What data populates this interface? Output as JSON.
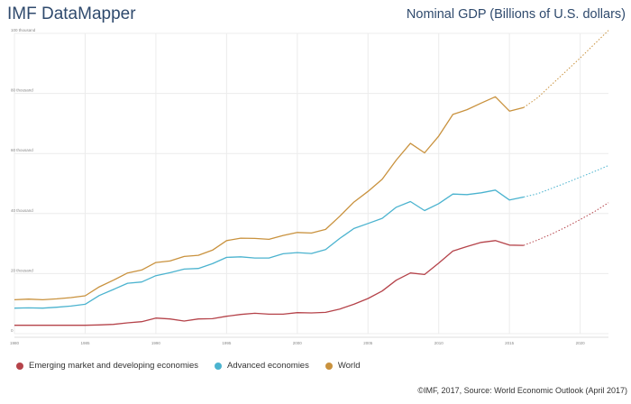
{
  "app_title": "IMF DataMapper",
  "credit": "©IMF, 2017, Source: World Economic Outlook (April 2017)",
  "colors": {
    "emerging": "#b5434a",
    "advanced": "#4bb3cf",
    "world": "#c9923e",
    "grid": "#ececec",
    "axis_text": "#888888"
  },
  "chart_data": {
    "type": "line",
    "title": "Nominal GDP (Billions of U.S. dollars)",
    "xlabel": "",
    "ylabel": "",
    "xlim": [
      1980,
      2022
    ],
    "ylim": [
      0,
      100000
    ],
    "x_ticks": [
      1980,
      1985,
      1990,
      1995,
      2000,
      2005,
      2010,
      2015,
      2020
    ],
    "y_ticks": [
      {
        "value": 0,
        "label": "0"
      },
      {
        "value": 20000,
        "label": "20 thousand"
      },
      {
        "value": 40000,
        "label": "40 thousand"
      },
      {
        "value": 60000,
        "label": "60 thousand"
      },
      {
        "value": 80000,
        "label": "80 thousand"
      },
      {
        "value": 100000,
        "label": "100 thousand"
      }
    ],
    "vertical_grid": true,
    "legend_position": "bottom-left",
    "series": [
      {
        "name": "Emerging market and developing economies",
        "key": "emerging",
        "points": [
          [
            1980,
            2800
          ],
          [
            1981,
            2800
          ],
          [
            1982,
            2800
          ],
          [
            1983,
            2800
          ],
          [
            1984,
            2800
          ],
          [
            1985,
            2800
          ],
          [
            1986,
            2900
          ],
          [
            1987,
            3100
          ],
          [
            1988,
            3600
          ],
          [
            1989,
            4000
          ],
          [
            1990,
            5200
          ],
          [
            1991,
            4900
          ],
          [
            1992,
            4200
          ],
          [
            1993,
            4900
          ],
          [
            1994,
            5000
          ],
          [
            1995,
            5800
          ],
          [
            1996,
            6400
          ],
          [
            1997,
            6800
          ],
          [
            1998,
            6500
          ],
          [
            1999,
            6500
          ],
          [
            2000,
            7000
          ],
          [
            2001,
            6900
          ],
          [
            2002,
            7100
          ],
          [
            2003,
            8200
          ],
          [
            2004,
            9800
          ],
          [
            2005,
            11700
          ],
          [
            2006,
            14200
          ],
          [
            2007,
            17800
          ],
          [
            2008,
            20200
          ],
          [
            2009,
            19700
          ],
          [
            2010,
            23500
          ],
          [
            2011,
            27500
          ],
          [
            2012,
            29000
          ],
          [
            2013,
            30400
          ],
          [
            2014,
            31000
          ],
          [
            2015,
            29500
          ],
          [
            2016,
            29400
          ]
        ],
        "projection": [
          [
            2016,
            29400
          ],
          [
            2017,
            31200
          ],
          [
            2018,
            33200
          ],
          [
            2019,
            35500
          ],
          [
            2020,
            38000
          ],
          [
            2021,
            40600
          ],
          [
            2022,
            43600
          ]
        ]
      },
      {
        "name": "Advanced economies",
        "key": "advanced",
        "points": [
          [
            1980,
            8500
          ],
          [
            1981,
            8600
          ],
          [
            1982,
            8500
          ],
          [
            1983,
            8800
          ],
          [
            1984,
            9200
          ],
          [
            1985,
            9800
          ],
          [
            1986,
            12700
          ],
          [
            1987,
            14700
          ],
          [
            1988,
            16800
          ],
          [
            1989,
            17200
          ],
          [
            1990,
            19300
          ],
          [
            1991,
            20300
          ],
          [
            1992,
            21500
          ],
          [
            1993,
            21700
          ],
          [
            1994,
            23300
          ],
          [
            1995,
            25400
          ],
          [
            1996,
            25600
          ],
          [
            1997,
            25200
          ],
          [
            1998,
            25200
          ],
          [
            1999,
            26600
          ],
          [
            2000,
            27000
          ],
          [
            2001,
            26700
          ],
          [
            2002,
            28000
          ],
          [
            2003,
            31700
          ],
          [
            2004,
            35000
          ],
          [
            2005,
            36700
          ],
          [
            2006,
            38400
          ],
          [
            2007,
            42100
          ],
          [
            2008,
            44000
          ],
          [
            2009,
            41000
          ],
          [
            2010,
            43300
          ],
          [
            2011,
            46500
          ],
          [
            2012,
            46300
          ],
          [
            2013,
            46900
          ],
          [
            2014,
            47800
          ],
          [
            2015,
            44500
          ],
          [
            2016,
            45500
          ]
        ],
        "projection": [
          [
            2016,
            45500
          ],
          [
            2017,
            46600
          ],
          [
            2018,
            48400
          ],
          [
            2019,
            50200
          ],
          [
            2020,
            52100
          ],
          [
            2021,
            54000
          ],
          [
            2022,
            56000
          ]
        ]
      },
      {
        "name": "World",
        "key": "world",
        "points": [
          [
            1980,
            11300
          ],
          [
            1981,
            11500
          ],
          [
            1982,
            11300
          ],
          [
            1983,
            11600
          ],
          [
            1984,
            12000
          ],
          [
            1985,
            12600
          ],
          [
            1986,
            15600
          ],
          [
            1987,
            17800
          ],
          [
            1988,
            20200
          ],
          [
            1989,
            21200
          ],
          [
            1990,
            23700
          ],
          [
            1991,
            24200
          ],
          [
            1992,
            25700
          ],
          [
            1993,
            26100
          ],
          [
            1994,
            27800
          ],
          [
            1995,
            31000
          ],
          [
            1996,
            31800
          ],
          [
            1997,
            31700
          ],
          [
            1998,
            31400
          ],
          [
            1999,
            32700
          ],
          [
            2000,
            33700
          ],
          [
            2001,
            33500
          ],
          [
            2002,
            34700
          ],
          [
            2003,
            39100
          ],
          [
            2004,
            43800
          ],
          [
            2005,
            47400
          ],
          [
            2006,
            51400
          ],
          [
            2007,
            57800
          ],
          [
            2008,
            63400
          ],
          [
            2009,
            60200
          ],
          [
            2010,
            65800
          ],
          [
            2011,
            73000
          ],
          [
            2012,
            74600
          ],
          [
            2013,
            76800
          ],
          [
            2014,
            78900
          ],
          [
            2015,
            74100
          ],
          [
            2016,
            75300
          ]
        ],
        "projection": [
          [
            2016,
            75300
          ],
          [
            2017,
            78600
          ],
          [
            2018,
            83000
          ],
          [
            2019,
            87400
          ],
          [
            2020,
            91800
          ],
          [
            2021,
            96400
          ],
          [
            2022,
            101000
          ]
        ]
      }
    ]
  }
}
